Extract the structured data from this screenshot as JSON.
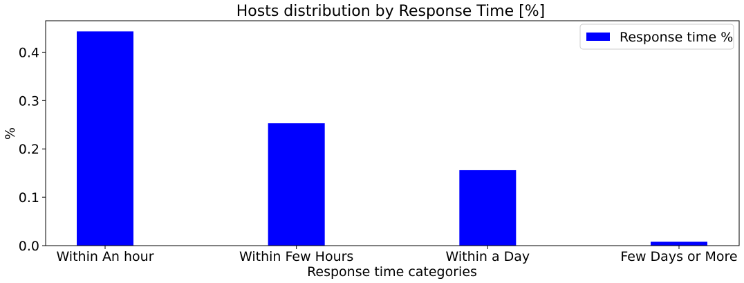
{
  "chart_data": {
    "type": "bar",
    "title": "Hosts distribution by Response Time [%]",
    "xlabel": "Response time categories",
    "ylabel": "%",
    "categories": [
      "Within An hour",
      "Within Few Hours",
      "Within a Day",
      "Few Days or More"
    ],
    "series": [
      {
        "name": "Response time %",
        "values": [
          0.443,
          0.253,
          0.156,
          0.008
        ]
      }
    ],
    "ylim": [
      0,
      0.465
    ],
    "yticks": [
      0.0,
      0.1,
      0.2,
      0.3,
      0.4
    ],
    "ytick_labels": [
      "0.0",
      "0.1",
      "0.2",
      "0.3",
      "0.4"
    ],
    "grid": false,
    "legend_position": "top-right",
    "bar_color": "#0000ff"
  }
}
